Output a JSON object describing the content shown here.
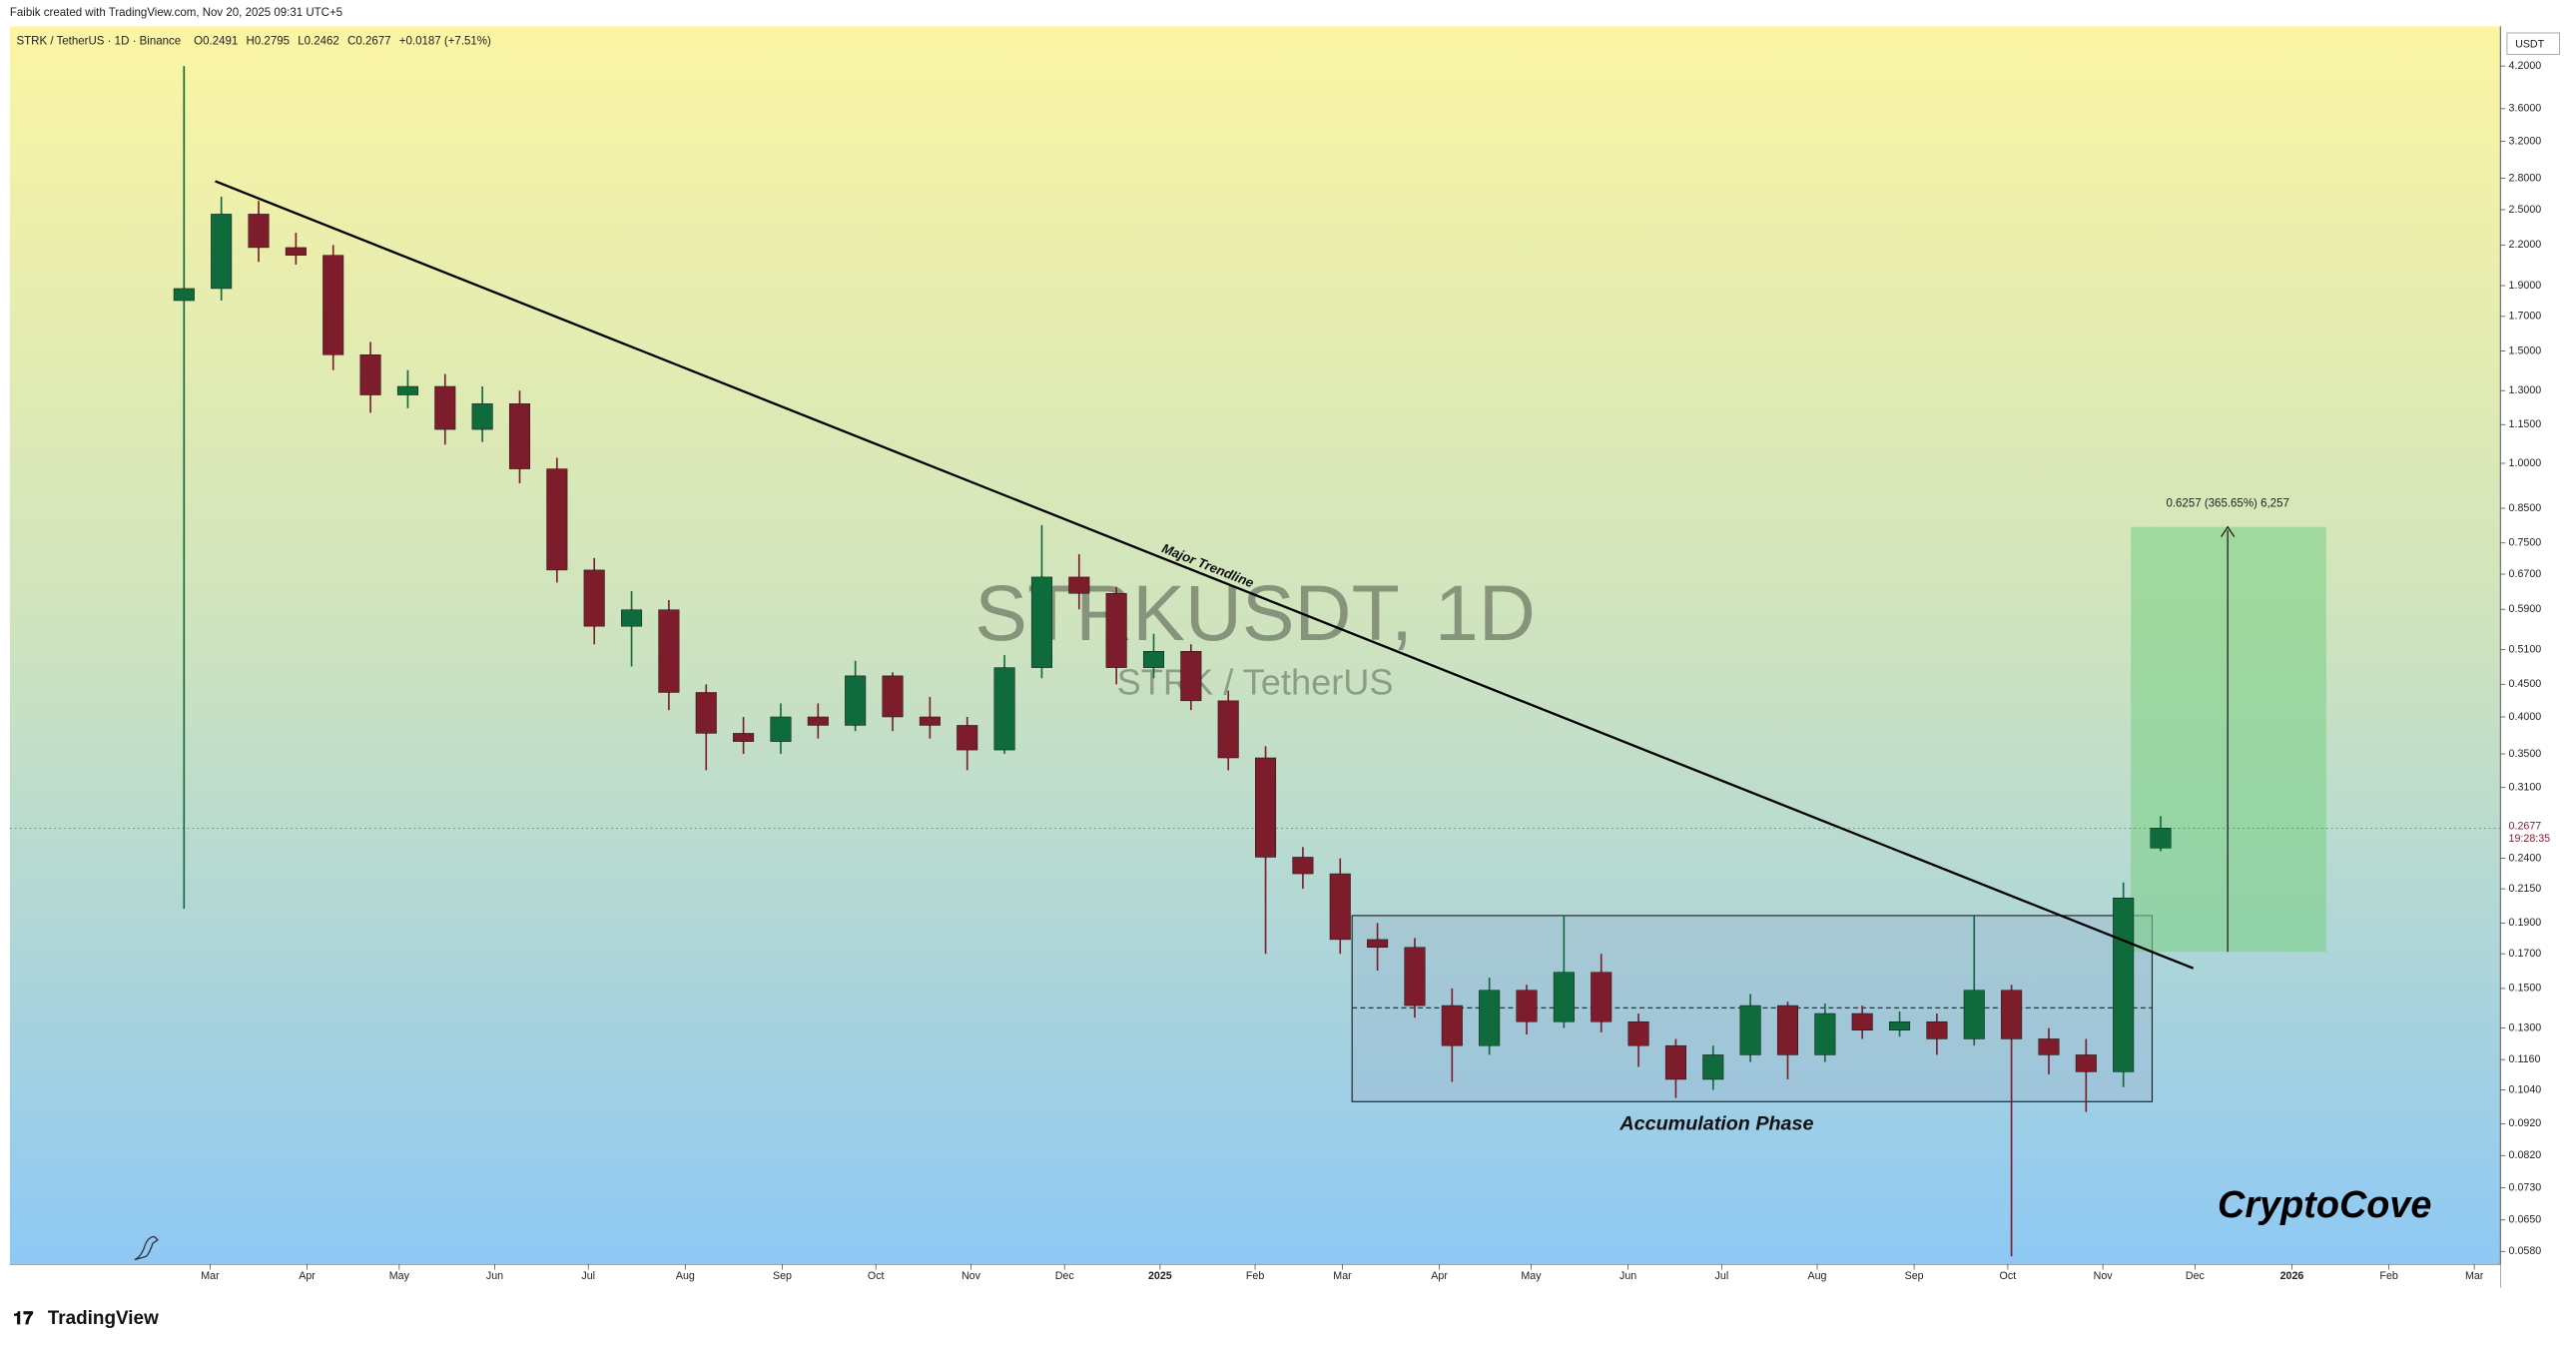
{
  "header": {
    "credit": "Faibik created with TradingView.com, Nov 20, 2025 09:31 UTC+5",
    "symbol": "STRK / TetherUS · 1D · Binance",
    "ohlc": [
      "O0.2491",
      "H0.2795",
      "L0.2462",
      "C0.2677",
      "+0.0187 (+7.51%)"
    ]
  },
  "chart_data": {
    "type": "candlestick",
    "watermark": "STRKUSDT, 1D",
    "watermark_subtitle": "STRK / TetherUS",
    "currency": "USDT",
    "annotations": {
      "trendline": "Major Trendline",
      "range": "Accumulation Phase",
      "signature": "CryptoCove",
      "measure": "0.6257 (365.65%) 6,257"
    },
    "last_price": {
      "value": 0.2677,
      "label": "0.2677",
      "countdown": "19:28:35"
    },
    "brand": "TradingView",
    "up_color": "#0f6b3c",
    "down_color": "#7d1d2c",
    "log_scale": true,
    "categories": [
      null,
      null,
      null,
      null,
      null,
      null,
      null,
      null,
      null,
      null,
      null,
      null,
      null,
      null,
      null,
      null,
      null,
      null,
      null,
      null,
      null,
      null,
      null,
      null,
      null,
      null,
      null,
      null,
      null,
      null,
      null,
      null,
      null,
      null,
      null,
      null,
      null,
      null,
      null,
      null,
      null,
      null,
      null,
      null,
      null,
      null,
      null,
      null,
      null,
      null,
      null,
      null,
      null,
      null
    ],
    "open": [
      1.8,
      1.88,
      2.46,
      2.18,
      2.12,
      1.48,
      1.28,
      1.32,
      1.13,
      1.24,
      0.98,
      0.68,
      0.555,
      0.589,
      0.437,
      0.377,
      0.366,
      0.4,
      0.388,
      0.464,
      0.4,
      0.388,
      0.355,
      0.478,
      0.663,
      0.625,
      0.478,
      0.507,
      0.424,
      0.345,
      0.241,
      0.227,
      0.179,
      0.174,
      0.141,
      0.122,
      0.149,
      0.133,
      0.159,
      0.133,
      0.122,
      0.108,
      0.118,
      0.141,
      0.118,
      0.137,
      0.129,
      0.133,
      0.125,
      0.149,
      0.125,
      0.118,
      0.111,
      0.2491
    ],
    "high": [
      4.2,
      2.62,
      2.58,
      2.3,
      2.2,
      1.55,
      1.4,
      1.38,
      1.32,
      1.3,
      1.02,
      0.71,
      0.63,
      0.61,
      0.45,
      0.4,
      0.42,
      0.42,
      0.49,
      0.47,
      0.43,
      0.4,
      0.5,
      0.8,
      0.72,
      0.64,
      0.54,
      0.52,
      0.44,
      0.36,
      0.25,
      0.24,
      0.19,
      0.18,
      0.15,
      0.156,
      0.152,
      0.195,
      0.17,
      0.137,
      0.125,
      0.122,
      0.147,
      0.143,
      0.142,
      0.141,
      0.138,
      0.137,
      0.195,
      0.152,
      0.13,
      0.125,
      0.22,
      0.2795
    ],
    "low": [
      0.2,
      1.8,
      2.07,
      2.05,
      1.4,
      1.2,
      1.22,
      1.07,
      1.08,
      0.93,
      0.65,
      0.52,
      0.48,
      0.41,
      0.33,
      0.35,
      0.35,
      0.37,
      0.38,
      0.38,
      0.37,
      0.33,
      0.35,
      0.46,
      0.59,
      0.45,
      0.46,
      0.41,
      0.33,
      0.17,
      0.215,
      0.17,
      0.16,
      0.135,
      0.107,
      0.118,
      0.127,
      0.13,
      0.128,
      0.113,
      0.101,
      0.104,
      0.115,
      0.108,
      0.115,
      0.125,
      0.126,
      0.118,
      0.122,
      0.057,
      0.11,
      0.096,
      0.105,
      0.2462
    ],
    "close": [
      1.88,
      2.46,
      2.18,
      2.12,
      1.48,
      1.28,
      1.32,
      1.13,
      1.24,
      0.98,
      0.68,
      0.555,
      0.589,
      0.437,
      0.377,
      0.366,
      0.4,
      0.388,
      0.464,
      0.4,
      0.388,
      0.355,
      0.478,
      0.663,
      0.625,
      0.478,
      0.507,
      0.424,
      0.345,
      0.241,
      0.227,
      0.179,
      0.174,
      0.141,
      0.122,
      0.149,
      0.133,
      0.159,
      0.133,
      0.122,
      0.108,
      0.118,
      0.141,
      0.118,
      0.137,
      0.129,
      0.133,
      0.125,
      0.149,
      0.125,
      0.118,
      0.111,
      0.208,
      0.2677
    ],
    "xlim": [
      -4.67,
      62.11
    ],
    "xticks": [
      {
        "value": 0.7,
        "label": "Mar"
      },
      {
        "value": 3.3,
        "label": "Apr"
      },
      {
        "value": 5.77,
        "label": "May"
      },
      {
        "value": 8.33,
        "label": "Jun"
      },
      {
        "value": 10.84,
        "label": "Jul"
      },
      {
        "value": 13.44,
        "label": "Aug"
      },
      {
        "value": 16.04,
        "label": "Sep"
      },
      {
        "value": 18.55,
        "label": "Oct"
      },
      {
        "value": 21.1,
        "label": "Nov"
      },
      {
        "value": 23.61,
        "label": "Dec"
      },
      {
        "value": 26.17,
        "label": "2025"
      },
      {
        "value": 28.72,
        "label": "Feb"
      },
      {
        "value": 31.06,
        "label": "Mar"
      },
      {
        "value": 33.66,
        "label": "Apr"
      },
      {
        "value": 36.12,
        "label": "May"
      },
      {
        "value": 38.72,
        "label": "Jun"
      },
      {
        "value": 41.23,
        "label": "Jul"
      },
      {
        "value": 43.79,
        "label": "Aug"
      },
      {
        "value": 46.39,
        "label": "Sep"
      },
      {
        "value": 48.9,
        "label": "Oct"
      },
      {
        "value": 51.45,
        "label": "Nov"
      },
      {
        "value": 53.92,
        "label": "Dec"
      },
      {
        "value": 56.52,
        "label": "2026"
      },
      {
        "value": 59.12,
        "label": "Feb"
      },
      {
        "value": 61.41,
        "label": "Mar"
      }
    ],
    "ylim": [
      0.0553,
      4.79
    ],
    "yticks": [
      {
        "value": 4.2,
        "label": "4.2000"
      },
      {
        "value": 3.6,
        "label": "3.6000"
      },
      {
        "value": 3.2,
        "label": "3.2000"
      },
      {
        "value": 2.8,
        "label": "2.8000"
      },
      {
        "value": 2.5,
        "label": "2.5000"
      },
      {
        "value": 2.2,
        "label": "2.2000"
      },
      {
        "value": 1.9,
        "label": "1.9000"
      },
      {
        "value": 1.7,
        "label": "1.7000"
      },
      {
        "value": 1.5,
        "label": "1.5000"
      },
      {
        "value": 1.3,
        "label": "1.3000"
      },
      {
        "value": 1.15,
        "label": "1.1500"
      },
      {
        "value": 1.0,
        "label": "1.0000"
      },
      {
        "value": 0.85,
        "label": "0.8500"
      },
      {
        "value": 0.75,
        "label": "0.7500"
      },
      {
        "value": 0.67,
        "label": "0.6700"
      },
      {
        "value": 0.59,
        "label": "0.5900"
      },
      {
        "value": 0.51,
        "label": "0.5100"
      },
      {
        "value": 0.45,
        "label": "0.4500"
      },
      {
        "value": 0.4,
        "label": "0.4000"
      },
      {
        "value": 0.35,
        "label": "0.3500"
      },
      {
        "value": 0.31,
        "label": "0.3100"
      },
      {
        "value": 0.24,
        "label": "0.2400"
      },
      {
        "value": 0.215,
        "label": "0.2150"
      },
      {
        "value": 0.19,
        "label": "0.1900"
      },
      {
        "value": 0.17,
        "label": "0.1700"
      },
      {
        "value": 0.15,
        "label": "0.1500"
      },
      {
        "value": 0.13,
        "label": "0.1300"
      },
      {
        "value": 0.116,
        "label": "0.1160"
      },
      {
        "value": 0.104,
        "label": "0.1040"
      },
      {
        "value": 0.092,
        "label": "0.0920"
      },
      {
        "value": 0.082,
        "label": "0.0820"
      },
      {
        "value": 0.073,
        "label": "0.0730"
      },
      {
        "value": 0.065,
        "label": "0.0650"
      },
      {
        "value": 0.058,
        "label": "0.0580"
      }
    ]
  }
}
